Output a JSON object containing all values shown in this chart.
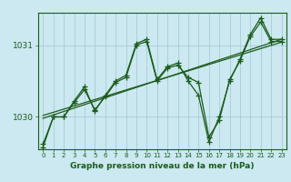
{
  "title": "Graphe pression niveau de la mer (hPa)",
  "bg_color": "#cce8f0",
  "line_color": "#1a5c1a",
  "grid_color": "#a8ccd8",
  "x_values": [
    0,
    1,
    2,
    3,
    4,
    5,
    6,
    7,
    8,
    9,
    10,
    11,
    12,
    13,
    14,
    15,
    16,
    17,
    18,
    19,
    20,
    21,
    22,
    23
  ],
  "line1": [
    1029.62,
    1030.0,
    1030.0,
    1030.2,
    1030.38,
    1030.1,
    1030.28,
    1030.48,
    1030.55,
    1031.0,
    1031.05,
    1030.5,
    1030.68,
    1030.72,
    1030.55,
    1030.48,
    1029.72,
    1029.95,
    1030.52,
    1030.78,
    1031.12,
    1031.32,
    1031.05,
    1031.05
  ],
  "line2": [
    1029.58,
    1030.0,
    1030.0,
    1030.22,
    1030.42,
    1030.08,
    1030.3,
    1030.5,
    1030.58,
    1031.02,
    1031.08,
    1030.52,
    1030.7,
    1030.75,
    1030.5,
    1030.3,
    1029.65,
    1030.0,
    1030.5,
    1030.8,
    1031.15,
    1031.38,
    1031.08,
    1031.08
  ],
  "trend1_x": [
    0,
    23
  ],
  "trend1_y": [
    1029.98,
    1031.08
  ],
  "trend2_x": [
    0,
    23
  ],
  "trend2_y": [
    1030.02,
    1031.04
  ],
  "ylim": [
    1029.55,
    1031.45
  ],
  "ytick_vals": [
    1030.0,
    1031.0
  ],
  "ytick_labels": [
    "1030",
    "1031"
  ],
  "xticks": [
    0,
    1,
    2,
    3,
    4,
    5,
    6,
    7,
    8,
    9,
    10,
    11,
    12,
    13,
    14,
    15,
    16,
    17,
    18,
    19,
    20,
    21,
    22,
    23
  ],
  "xlim": [
    -0.5,
    23.5
  ]
}
